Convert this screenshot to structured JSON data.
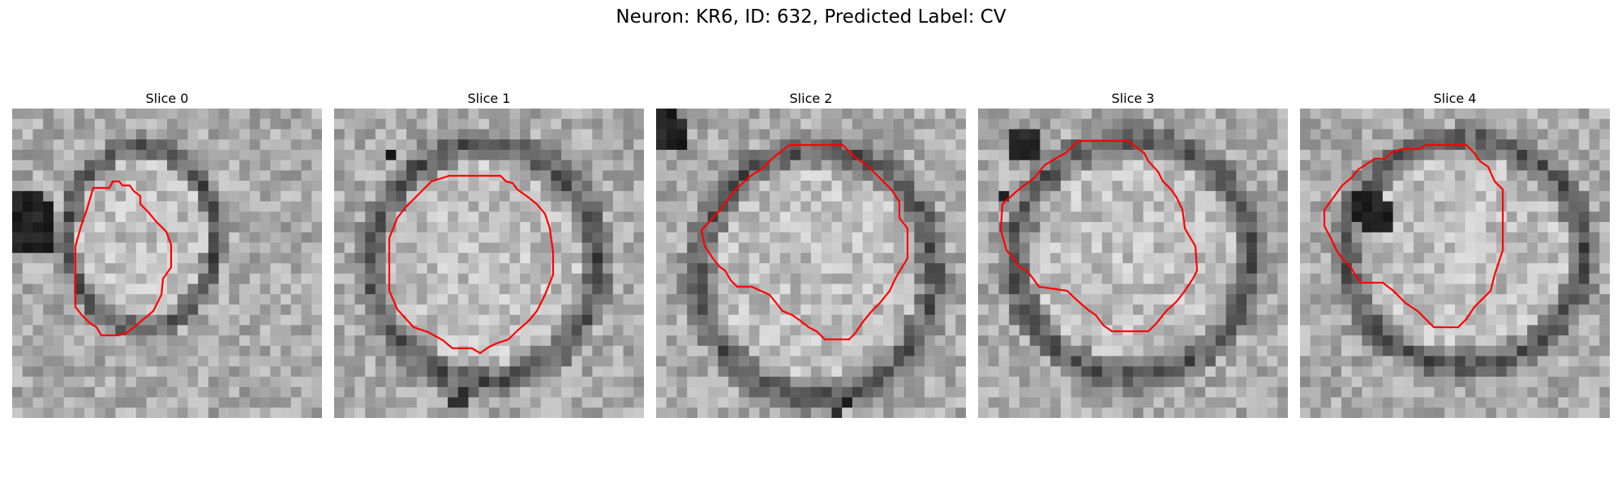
{
  "figure": {
    "title": "Neuron: KR6, ID: 632, Predicted Label: CV"
  },
  "panels": [
    {
      "title": "Slice 0",
      "contour_color": "#ff0000"
    },
    {
      "title": "Slice 1",
      "contour_color": "#ff0000"
    },
    {
      "title": "Slice 2",
      "contour_color": "#ff0000"
    },
    {
      "title": "Slice 3",
      "contour_color": "#ff0000"
    },
    {
      "title": "Slice 4",
      "contour_color": "#ff0000"
    }
  ],
  "colormap": "grayscale"
}
